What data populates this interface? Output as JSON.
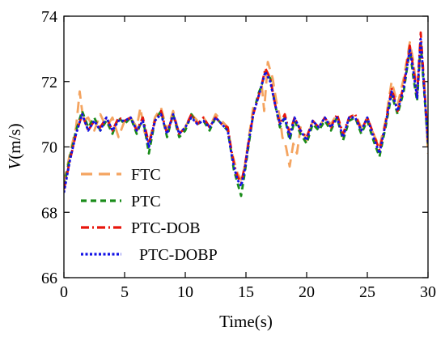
{
  "chart_data": {
    "type": "line",
    "xlabel": "Time(s)",
    "ylabel_italic": "V",
    "ylabel_unit": "(m/s)",
    "xlim": [
      0,
      30
    ],
    "ylim": [
      66,
      74
    ],
    "xticks": [
      0,
      5,
      10,
      15,
      20,
      25,
      30
    ],
    "yticks": [
      66,
      68,
      70,
      72,
      74
    ],
    "grid": false,
    "legend_position": "lower-left",
    "series": [
      {
        "name": "FTC",
        "color": "#F4A460",
        "dash": "long-dash",
        "points": [
          [
            0,
            68.9
          ],
          [
            0.5,
            69.8
          ],
          [
            1.0,
            70.6
          ],
          [
            1.3,
            71.7
          ],
          [
            1.6,
            70.8
          ],
          [
            2.0,
            70.9
          ],
          [
            2.5,
            70.5
          ],
          [
            3.0,
            71.0
          ],
          [
            3.5,
            70.6
          ],
          [
            4.0,
            70.9
          ],
          [
            4.5,
            70.3
          ],
          [
            5.0,
            70.8
          ],
          [
            5.5,
            70.9
          ],
          [
            6.0,
            70.6
          ],
          [
            6.3,
            71.2
          ],
          [
            6.6,
            70.5
          ],
          [
            7.0,
            70.1
          ],
          [
            7.5,
            70.9
          ],
          [
            8.0,
            71.2
          ],
          [
            8.5,
            70.5
          ],
          [
            9.0,
            71.1
          ],
          [
            9.5,
            70.4
          ],
          [
            10.0,
            70.6
          ],
          [
            10.5,
            71.0
          ],
          [
            11.0,
            70.8
          ],
          [
            11.5,
            70.9
          ],
          [
            12.0,
            70.6
          ],
          [
            12.5,
            71.0
          ],
          [
            13.0,
            70.8
          ],
          [
            13.5,
            70.6
          ],
          [
            13.8,
            69.9
          ],
          [
            14.0,
            69.6
          ],
          [
            14.3,
            69.2
          ],
          [
            14.6,
            69.0
          ],
          [
            14.9,
            69.4
          ],
          [
            15.2,
            70.2
          ],
          [
            15.6,
            71.2
          ],
          [
            16.0,
            71.5
          ],
          [
            16.3,
            71.9
          ],
          [
            16.5,
            71.1
          ],
          [
            16.8,
            72.6
          ],
          [
            17.2,
            72.1
          ],
          [
            17.5,
            71.4
          ],
          [
            17.8,
            70.9
          ],
          [
            18.0,
            70.3
          ],
          [
            18.3,
            70.0
          ],
          [
            18.6,
            69.4
          ],
          [
            18.9,
            70.1
          ],
          [
            19.2,
            69.8
          ],
          [
            19.5,
            70.6
          ],
          [
            20.0,
            70.2
          ],
          [
            20.5,
            70.8
          ],
          [
            21.0,
            70.6
          ],
          [
            21.5,
            70.9
          ],
          [
            22.0,
            70.7
          ],
          [
            22.5,
            71.0
          ],
          [
            23.0,
            70.3
          ],
          [
            23.5,
            70.9
          ],
          [
            24.0,
            71.0
          ],
          [
            24.5,
            70.6
          ],
          [
            25.0,
            70.9
          ],
          [
            25.5,
            70.4
          ],
          [
            26.0,
            70.0
          ],
          [
            26.5,
            70.8
          ],
          [
            27.0,
            72.0
          ],
          [
            27.5,
            71.3
          ],
          [
            28.0,
            72.1
          ],
          [
            28.5,
            73.2
          ],
          [
            28.8,
            72.6
          ],
          [
            29.1,
            71.6
          ],
          [
            29.4,
            73.0
          ],
          [
            29.7,
            71.9
          ],
          [
            30.0,
            69.8
          ]
        ]
      },
      {
        "name": "PTC",
        "color": "#1A8C1A",
        "dash": "dash",
        "points": [
          [
            0,
            68.8
          ],
          [
            0.5,
            69.7
          ],
          [
            1.0,
            70.5
          ],
          [
            1.5,
            71.1
          ],
          [
            2.0,
            70.6
          ],
          [
            2.5,
            70.9
          ],
          [
            3.0,
            70.5
          ],
          [
            3.5,
            70.8
          ],
          [
            4.0,
            70.4
          ],
          [
            4.5,
            70.9
          ],
          [
            5.0,
            70.7
          ],
          [
            5.5,
            70.9
          ],
          [
            6.0,
            70.4
          ],
          [
            6.5,
            70.9
          ],
          [
            7.0,
            69.8
          ],
          [
            7.5,
            70.8
          ],
          [
            8.0,
            71.1
          ],
          [
            8.5,
            70.3
          ],
          [
            9.0,
            71.0
          ],
          [
            9.5,
            70.3
          ],
          [
            10.0,
            70.5
          ],
          [
            10.5,
            71.0
          ],
          [
            11.0,
            70.7
          ],
          [
            11.5,
            70.8
          ],
          [
            12.0,
            70.5
          ],
          [
            12.5,
            70.9
          ],
          [
            13.0,
            70.7
          ],
          [
            13.5,
            70.5
          ],
          [
            13.8,
            69.8
          ],
          [
            14.0,
            69.3
          ],
          [
            14.3,
            68.9
          ],
          [
            14.6,
            68.5
          ],
          [
            14.9,
            69.2
          ],
          [
            15.2,
            70.0
          ],
          [
            15.6,
            71.0
          ],
          [
            16.0,
            71.6
          ],
          [
            16.3,
            71.9
          ],
          [
            16.6,
            72.3
          ],
          [
            17.0,
            72.1
          ],
          [
            17.4,
            71.3
          ],
          [
            17.8,
            70.6
          ],
          [
            18.2,
            70.9
          ],
          [
            18.6,
            70.2
          ],
          [
            19.0,
            70.8
          ],
          [
            19.5,
            70.4
          ],
          [
            20.0,
            70.1
          ],
          [
            20.5,
            70.7
          ],
          [
            21.0,
            70.5
          ],
          [
            21.5,
            70.8
          ],
          [
            22.0,
            70.5
          ],
          [
            22.5,
            70.9
          ],
          [
            23.0,
            70.2
          ],
          [
            23.5,
            70.8
          ],
          [
            24.0,
            70.9
          ],
          [
            24.5,
            70.4
          ],
          [
            25.0,
            70.8
          ],
          [
            25.5,
            70.2
          ],
          [
            26.0,
            69.7
          ],
          [
            26.5,
            70.6
          ],
          [
            27.0,
            71.6
          ],
          [
            27.5,
            71.0
          ],
          [
            28.0,
            71.7
          ],
          [
            28.5,
            73.0
          ],
          [
            28.8,
            72.1
          ],
          [
            29.1,
            71.4
          ],
          [
            29.4,
            73.2
          ],
          [
            29.7,
            71.6
          ],
          [
            30.0,
            70.1
          ]
        ]
      },
      {
        "name": "PTC-DOB",
        "color": "#E8160C",
        "dash": "dash-dot",
        "points": [
          [
            0,
            68.7
          ],
          [
            0.5,
            69.6
          ],
          [
            1.0,
            70.4
          ],
          [
            1.5,
            71.0
          ],
          [
            2.0,
            70.5
          ],
          [
            2.5,
            70.8
          ],
          [
            3.0,
            70.6
          ],
          [
            3.5,
            70.9
          ],
          [
            4.0,
            70.5
          ],
          [
            4.5,
            70.9
          ],
          [
            5.0,
            70.8
          ],
          [
            5.5,
            70.9
          ],
          [
            6.0,
            70.5
          ],
          [
            6.5,
            70.9
          ],
          [
            7.0,
            70.1
          ],
          [
            7.5,
            70.8
          ],
          [
            8.0,
            71.1
          ],
          [
            8.5,
            70.4
          ],
          [
            9.0,
            71.0
          ],
          [
            9.5,
            70.4
          ],
          [
            10.0,
            70.6
          ],
          [
            10.5,
            71.0
          ],
          [
            11.0,
            70.7
          ],
          [
            11.5,
            70.9
          ],
          [
            12.0,
            70.6
          ],
          [
            12.5,
            70.9
          ],
          [
            13.0,
            70.7
          ],
          [
            13.5,
            70.6
          ],
          [
            13.8,
            69.9
          ],
          [
            14.0,
            69.5
          ],
          [
            14.3,
            69.1
          ],
          [
            14.6,
            68.9
          ],
          [
            14.9,
            69.4
          ],
          [
            15.2,
            70.1
          ],
          [
            15.6,
            71.0
          ],
          [
            16.0,
            71.5
          ],
          [
            16.3,
            71.9
          ],
          [
            16.6,
            72.4
          ],
          [
            17.0,
            72.1
          ],
          [
            17.4,
            71.3
          ],
          [
            17.8,
            70.7
          ],
          [
            18.2,
            71.0
          ],
          [
            18.6,
            70.4
          ],
          [
            19.0,
            70.9
          ],
          [
            19.5,
            70.5
          ],
          [
            20.0,
            70.3
          ],
          [
            20.5,
            70.8
          ],
          [
            21.0,
            70.6
          ],
          [
            21.5,
            70.9
          ],
          [
            22.0,
            70.6
          ],
          [
            22.5,
            71.0
          ],
          [
            23.0,
            70.4
          ],
          [
            23.5,
            70.9
          ],
          [
            24.0,
            71.0
          ],
          [
            24.5,
            70.5
          ],
          [
            25.0,
            70.9
          ],
          [
            25.5,
            70.4
          ],
          [
            26.0,
            69.9
          ],
          [
            26.5,
            70.7
          ],
          [
            27.0,
            71.8
          ],
          [
            27.5,
            71.1
          ],
          [
            28.0,
            71.9
          ],
          [
            28.5,
            73.1
          ],
          [
            28.8,
            72.4
          ],
          [
            29.1,
            71.6
          ],
          [
            29.4,
            73.5
          ],
          [
            29.7,
            71.8
          ],
          [
            30.0,
            70.2
          ]
        ]
      },
      {
        "name": "PTC-DOBP",
        "color": "#1212E6",
        "dash": "dot",
        "points": [
          [
            0,
            68.6
          ],
          [
            0.5,
            69.6
          ],
          [
            1.0,
            70.4
          ],
          [
            1.5,
            71.0
          ],
          [
            2.0,
            70.5
          ],
          [
            2.5,
            70.8
          ],
          [
            3.0,
            70.5
          ],
          [
            3.5,
            70.9
          ],
          [
            4.0,
            70.5
          ],
          [
            4.5,
            70.8
          ],
          [
            5.0,
            70.8
          ],
          [
            5.5,
            70.9
          ],
          [
            6.0,
            70.5
          ],
          [
            6.5,
            70.8
          ],
          [
            7.0,
            70.0
          ],
          [
            7.5,
            70.8
          ],
          [
            8.0,
            71.0
          ],
          [
            8.5,
            70.4
          ],
          [
            9.0,
            71.0
          ],
          [
            9.5,
            70.4
          ],
          [
            10.0,
            70.6
          ],
          [
            10.5,
            70.9
          ],
          [
            11.0,
            70.7
          ],
          [
            11.5,
            70.8
          ],
          [
            12.0,
            70.6
          ],
          [
            12.5,
            70.9
          ],
          [
            13.0,
            70.7
          ],
          [
            13.5,
            70.5
          ],
          [
            13.8,
            69.8
          ],
          [
            14.0,
            69.4
          ],
          [
            14.3,
            69.0
          ],
          [
            14.6,
            68.8
          ],
          [
            14.9,
            69.3
          ],
          [
            15.2,
            70.1
          ],
          [
            15.6,
            71.0
          ],
          [
            16.0,
            71.5
          ],
          [
            16.3,
            71.9
          ],
          [
            16.6,
            72.3
          ],
          [
            17.0,
            72.0
          ],
          [
            17.4,
            71.3
          ],
          [
            17.8,
            70.7
          ],
          [
            18.2,
            70.9
          ],
          [
            18.6,
            70.3
          ],
          [
            19.0,
            70.9
          ],
          [
            19.5,
            70.5
          ],
          [
            20.0,
            70.2
          ],
          [
            20.5,
            70.8
          ],
          [
            21.0,
            70.6
          ],
          [
            21.5,
            70.9
          ],
          [
            22.0,
            70.6
          ],
          [
            22.5,
            70.9
          ],
          [
            23.0,
            70.3
          ],
          [
            23.5,
            70.9
          ],
          [
            24.0,
            70.9
          ],
          [
            24.5,
            70.5
          ],
          [
            25.0,
            70.9
          ],
          [
            25.5,
            70.3
          ],
          [
            26.0,
            69.8
          ],
          [
            26.5,
            70.7
          ],
          [
            27.0,
            71.7
          ],
          [
            27.5,
            71.1
          ],
          [
            28.0,
            71.8
          ],
          [
            28.5,
            73.0
          ],
          [
            28.8,
            72.3
          ],
          [
            29.1,
            71.5
          ],
          [
            29.4,
            73.3
          ],
          [
            29.7,
            71.7
          ],
          [
            30.0,
            70.1
          ]
        ]
      }
    ]
  }
}
